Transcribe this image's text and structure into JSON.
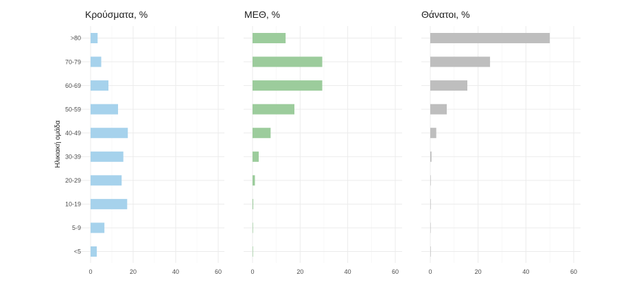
{
  "chart_data": {
    "type": "bar",
    "orientation": "horizontal",
    "ylabel": "Ηλικιακή ομάδα",
    "categories": [
      ">80",
      "70-79",
      "60-69",
      "50-59",
      "40-49",
      "30-39",
      "20-29",
      "10-19",
      "5-9",
      "<5"
    ],
    "grid": true,
    "panels": [
      {
        "title": "Κρούσματα, %",
        "color": "#a6d2ec",
        "xlim": [
          0,
          64
        ],
        "xticks": [
          0,
          20,
          40,
          60
        ],
        "values": [
          3.3,
          5.0,
          8.4,
          12.9,
          17.5,
          15.4,
          14.6,
          17.2,
          6.5,
          2.9
        ]
      },
      {
        "title": "ΜΕΘ, %",
        "color": "#9ccc9c",
        "xlim": [
          0,
          63
        ],
        "xticks": [
          0,
          20,
          40,
          60
        ],
        "values": [
          13.9,
          29.3,
          29.3,
          17.6,
          7.6,
          2.6,
          1.0,
          0.3,
          0.2,
          0.2
        ]
      },
      {
        "title": "Θάνατοι, %",
        "color": "#bebebe",
        "xlim": [
          0,
          63
        ],
        "xticks": [
          0,
          20,
          40,
          60
        ],
        "values": [
          50.0,
          25.0,
          15.5,
          6.9,
          2.5,
          0.5,
          0.2,
          0.2,
          0.1,
          0.2
        ]
      }
    ]
  }
}
